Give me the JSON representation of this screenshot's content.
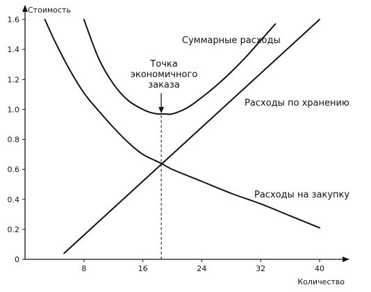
{
  "chart_data": {
    "type": "line",
    "title": "",
    "xlabel": "Количество",
    "ylabel": "Стоимость",
    "xlim": [
      0,
      42
    ],
    "ylim": [
      0,
      1.7
    ],
    "x_ticks": [
      8,
      16,
      24,
      32,
      40
    ],
    "y_ticks": [
      0,
      0.2,
      0.4,
      0.6,
      0.8,
      1.0,
      1.2,
      1.4,
      1.6
    ],
    "x_tick_labels": [
      "8",
      "16",
      "24",
      "32",
      "40"
    ],
    "y_tick_labels": [
      "0",
      "0.2",
      "0.4",
      "0.6",
      "0.8",
      "1.0",
      "1.2",
      "1.4",
      "1.6"
    ],
    "grid": false,
    "series": [
      {
        "name": "Суммарные расходы",
        "x": [
          8.0,
          10,
          12,
          14,
          16,
          17,
          18,
          19,
          20,
          22,
          24,
          26,
          28,
          30,
          32,
          34
        ],
        "y": [
          1.6,
          1.34,
          1.17,
          1.06,
          1.0,
          0.98,
          0.97,
          0.97,
          0.97,
          1.01,
          1.08,
          1.16,
          1.25,
          1.35,
          1.46,
          1.57
        ]
      },
      {
        "name": "Расходы по хранению",
        "x": [
          5.3,
          40
        ],
        "y": [
          0.04,
          1.6
        ]
      },
      {
        "name": "Расходы на закупку",
        "x": [
          2.7,
          4,
          6,
          8,
          10,
          12,
          14,
          16,
          18.5,
          20,
          24,
          28,
          32,
          36,
          40
        ],
        "y": [
          1.6,
          1.46,
          1.27,
          1.11,
          0.99,
          0.88,
          0.78,
          0.7,
          0.64,
          0.6,
          0.52,
          0.44,
          0.37,
          0.29,
          0.21
        ]
      }
    ],
    "annotations": [
      {
        "lines": [
          "Точка",
          "экономичного",
          "заказа"
        ],
        "x": 18.5,
        "y": 0.97
      }
    ]
  }
}
